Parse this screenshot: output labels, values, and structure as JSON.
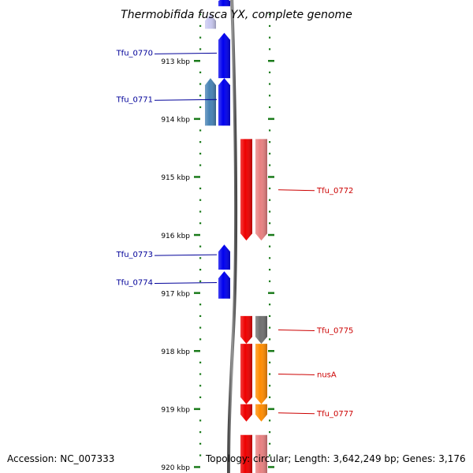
{
  "title": "Thermobifida fusca YX, complete genome",
  "accession_label": "Accession: NC_007333",
  "summary_label": "Topology: circular; Length: 3,642,249 bp; Genes: 3,176",
  "scale": {
    "unit": "kbp",
    "ticks": [
      "913 kbp",
      "914 kbp",
      "915 kbp",
      "916 kbp",
      "917 kbp",
      "918 kbp",
      "919 kbp",
      "920 kbp"
    ]
  },
  "genes": [
    {
      "name": "",
      "strand": "-",
      "lane": "left-outer",
      "start_kbp": 912.2,
      "end_kbp": 912.45,
      "color": "#c8c8f0",
      "label_side": "none"
    },
    {
      "name": "",
      "strand": "-",
      "lane": "left-inner",
      "start_kbp": 911.9,
      "end_kbp": 912.06,
      "color": "#0000ee",
      "label_side": "none"
    },
    {
      "name": "Tfu_0770",
      "strand": "-",
      "lane": "left-inner",
      "start_kbp": 912.52,
      "end_kbp": 913.3,
      "color": "#0000ee",
      "label_side": "left"
    },
    {
      "name": "",
      "strand": "-",
      "lane": "left-outer",
      "start_kbp": 913.3,
      "end_kbp": 914.12,
      "color": "#4682b4",
      "label_side": "none"
    },
    {
      "name": "Tfu_0771",
      "strand": "-",
      "lane": "left-inner",
      "start_kbp": 913.3,
      "end_kbp": 914.12,
      "color": "#0000ee",
      "label_side": "left"
    },
    {
      "name": "Tfu_0772",
      "strand": "+",
      "lane": "right-inner",
      "start_kbp": 914.35,
      "end_kbp": 916.1,
      "color": "#ee0000",
      "label_side": "right"
    },
    {
      "name": "",
      "strand": "+",
      "lane": "right-outer",
      "start_kbp": 914.35,
      "end_kbp": 916.1,
      "color": "#e88080",
      "label_side": "none"
    },
    {
      "name": "Tfu_0773",
      "strand": "-",
      "lane": "left-inner",
      "start_kbp": 916.17,
      "end_kbp": 916.6,
      "color": "#0000ee",
      "label_side": "left"
    },
    {
      "name": "Tfu_0774",
      "strand": "-",
      "lane": "left-inner",
      "start_kbp": 916.63,
      "end_kbp": 917.1,
      "color": "#0000ee",
      "label_side": "left"
    },
    {
      "name": "Tfu_0775",
      "strand": "+",
      "lane": "right-inner",
      "start_kbp": 917.4,
      "end_kbp": 917.88,
      "color": "#ee0000",
      "label_side": "right"
    },
    {
      "name": "",
      "strand": "+",
      "lane": "right-outer",
      "start_kbp": 917.4,
      "end_kbp": 917.88,
      "color": "#707070",
      "label_side": "none"
    },
    {
      "name": "nusA",
      "strand": "+",
      "lane": "right-inner",
      "start_kbp": 917.88,
      "end_kbp": 918.92,
      "color": "#ee0000",
      "label_side": "right"
    },
    {
      "name": "",
      "strand": "+",
      "lane": "right-outer",
      "start_kbp": 917.88,
      "end_kbp": 918.92,
      "color": "#ff8c00",
      "label_side": "none"
    },
    {
      "name": "Tfu_0777",
      "strand": "+",
      "lane": "right-inner",
      "start_kbp": 918.92,
      "end_kbp": 919.22,
      "color": "#ee0000",
      "label_side": "right"
    },
    {
      "name": "",
      "strand": "+",
      "lane": "right-outer",
      "start_kbp": 918.92,
      "end_kbp": 919.22,
      "color": "#ff8c00",
      "label_side": "none"
    },
    {
      "name": "",
      "strand": "+",
      "lane": "right-inner",
      "start_kbp": 919.45,
      "end_kbp": 920.3,
      "color": "#ee0000",
      "label_side": "none"
    },
    {
      "name": "",
      "strand": "+",
      "lane": "right-outer",
      "start_kbp": 919.45,
      "end_kbp": 920.3,
      "color": "#e88080",
      "label_side": "none"
    }
  ],
  "colors": {
    "minus_strand_label": "#000099",
    "plus_strand_label": "#cc0000",
    "tick_marks": "#1a7a1a",
    "backbone": "#707070"
  }
}
